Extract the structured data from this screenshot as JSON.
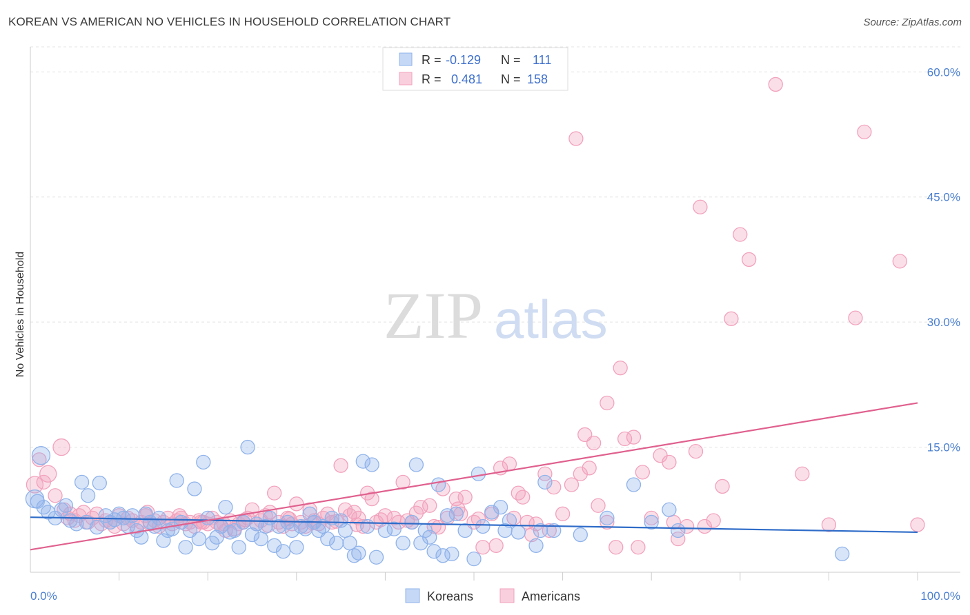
{
  "title": "KOREAN VS AMERICAN NO VEHICLES IN HOUSEHOLD CORRELATION CHART",
  "source": "Source: ZipAtlas.com",
  "watermark": {
    "zip": "ZIP",
    "atlas": "atlas"
  },
  "legend_top": [
    {
      "r_label": "R =",
      "r_value": "-0.129",
      "n_label": "N =",
      "n_value": "111",
      "color": "#8fb3ea"
    },
    {
      "r_label": "R =",
      "r_value": "0.481",
      "n_label": "N =",
      "n_value": "158",
      "color": "#f2a2bd"
    }
  ],
  "chart_data": {
    "type": "scatter",
    "title": "KOREAN VS AMERICAN NO VEHICLES IN HOUSEHOLD CORRELATION CHART",
    "ylabel": "No Vehicles in Household",
    "xlabel": "",
    "xlim": [
      0,
      100
    ],
    "ylim": [
      0,
      63
    ],
    "x_tick_labels": [
      "0.0%",
      "100.0%"
    ],
    "y_ticks": [
      15,
      30,
      45,
      60
    ],
    "y_tick_labels": [
      "15.0%",
      "30.0%",
      "45.0%",
      "60.0%"
    ],
    "grid": true,
    "legend_position": "bottom",
    "series": [
      {
        "name": "Koreans",
        "color": "#8fb3ea",
        "line_color": "#2e6cc8",
        "trend": [
          [
            0,
            6.6
          ],
          [
            100,
            4.8
          ]
        ],
        "points": [
          [
            0.5,
            8.8
          ],
          [
            1.2,
            14.0
          ],
          [
            1.5,
            7.8
          ],
          [
            2.0,
            7.2
          ],
          [
            2.8,
            6.5
          ],
          [
            3.5,
            7.5
          ],
          [
            4.0,
            8.0
          ],
          [
            4.5,
            6.2
          ],
          [
            5.2,
            5.8
          ],
          [
            5.8,
            10.8
          ],
          [
            6.3,
            6.0
          ],
          [
            6.5,
            9.2
          ],
          [
            7.5,
            5.4
          ],
          [
            7.8,
            10.7
          ],
          [
            8.5,
            6.8
          ],
          [
            9.0,
            6.0
          ],
          [
            9.5,
            6.3
          ],
          [
            10.0,
            7.0
          ],
          [
            10.5,
            6.5
          ],
          [
            11.0,
            5.5
          ],
          [
            11.5,
            6.8
          ],
          [
            12.0,
            5.0
          ],
          [
            12.5,
            4.2
          ],
          [
            13.0,
            7.0
          ],
          [
            13.5,
            6.0
          ],
          [
            14.0,
            5.5
          ],
          [
            14.5,
            6.5
          ],
          [
            15.0,
            3.8
          ],
          [
            15.5,
            5.0
          ],
          [
            16.0,
            5.2
          ],
          [
            16.5,
            11.0
          ],
          [
            17.0,
            6.0
          ],
          [
            17.5,
            3.0
          ],
          [
            18.0,
            5.0
          ],
          [
            18.5,
            10.0
          ],
          [
            19.0,
            4.0
          ],
          [
            19.5,
            13.2
          ],
          [
            20.0,
            6.5
          ],
          [
            20.5,
            3.5
          ],
          [
            21.0,
            4.2
          ],
          [
            21.5,
            5.5
          ],
          [
            22.0,
            7.8
          ],
          [
            22.5,
            4.8
          ],
          [
            23.0,
            5.0
          ],
          [
            23.5,
            3.0
          ],
          [
            24.0,
            6.0
          ],
          [
            24.5,
            15.0
          ],
          [
            25.0,
            4.5
          ],
          [
            25.5,
            5.8
          ],
          [
            26.0,
            4.0
          ],
          [
            26.5,
            5.5
          ],
          [
            27.0,
            6.5
          ],
          [
            27.5,
            3.2
          ],
          [
            28.0,
            5.5
          ],
          [
            28.5,
            2.5
          ],
          [
            29.0,
            6.0
          ],
          [
            29.5,
            5.0
          ],
          [
            30.0,
            3.0
          ],
          [
            30.5,
            5.5
          ],
          [
            31.0,
            5.2
          ],
          [
            31.5,
            7.0
          ],
          [
            32.0,
            6.0
          ],
          [
            32.5,
            5.0
          ],
          [
            33.0,
            5.5
          ],
          [
            33.5,
            4.0
          ],
          [
            34.0,
            6.5
          ],
          [
            34.5,
            3.5
          ],
          [
            35.0,
            6.2
          ],
          [
            35.5,
            5.0
          ],
          [
            36.0,
            3.5
          ],
          [
            36.5,
            2.0
          ],
          [
            37.0,
            2.3
          ],
          [
            37.5,
            13.3
          ],
          [
            38.0,
            5.5
          ],
          [
            38.5,
            12.9
          ],
          [
            39.0,
            1.8
          ],
          [
            40.0,
            5.0
          ],
          [
            41.0,
            5.2
          ],
          [
            42.0,
            3.5
          ],
          [
            43.0,
            6.0
          ],
          [
            43.5,
            12.9
          ],
          [
            44.0,
            3.5
          ],
          [
            44.5,
            5.0
          ],
          [
            45.0,
            4.2
          ],
          [
            45.5,
            2.5
          ],
          [
            46.0,
            10.5
          ],
          [
            46.5,
            2.0
          ],
          [
            47.0,
            6.8
          ],
          [
            47.5,
            2.2
          ],
          [
            48.0,
            7.0
          ],
          [
            49.0,
            5.0
          ],
          [
            50.0,
            1.6
          ],
          [
            50.5,
            11.8
          ],
          [
            51.0,
            5.5
          ],
          [
            52.0,
            7.2
          ],
          [
            53.0,
            7.8
          ],
          [
            53.5,
            5.0
          ],
          [
            54.0,
            6.2
          ],
          [
            55.0,
            4.8
          ],
          [
            57.0,
            3.2
          ],
          [
            57.5,
            5.0
          ],
          [
            58.0,
            10.8
          ],
          [
            59.0,
            5.0
          ],
          [
            62.0,
            4.5
          ],
          [
            65.0,
            6.5
          ],
          [
            68.0,
            10.5
          ],
          [
            70.0,
            6.0
          ],
          [
            72.0,
            7.5
          ],
          [
            73.0,
            5.0
          ],
          [
            91.5,
            2.2
          ],
          [
            0.8,
            8.5
          ]
        ]
      },
      {
        "name": "Americans",
        "color": "#f2a2bd",
        "line_color": "#e0608e",
        "trend": [
          [
            0,
            2.7
          ],
          [
            100,
            20.3
          ]
        ],
        "points": [
          [
            0.5,
            10.5
          ],
          [
            1.0,
            13.5
          ],
          [
            1.5,
            10.8
          ],
          [
            2.0,
            11.8
          ],
          [
            2.8,
            9.2
          ],
          [
            3.5,
            15.0
          ],
          [
            3.8,
            7.5
          ],
          [
            4.2,
            6.5
          ],
          [
            4.5,
            7.0
          ],
          [
            5.0,
            6.2
          ],
          [
            5.5,
            6.8
          ],
          [
            6.0,
            7.2
          ],
          [
            6.5,
            6.0
          ],
          [
            7.0,
            6.5
          ],
          [
            7.5,
            7.0
          ],
          [
            8.0,
            5.8
          ],
          [
            8.5,
            6.2
          ],
          [
            9.0,
            6.0
          ],
          [
            9.5,
            5.5
          ],
          [
            10.0,
            6.8
          ],
          [
            10.5,
            5.8
          ],
          [
            11.0,
            6.5
          ],
          [
            11.5,
            6.2
          ],
          [
            12.0,
            5.5
          ],
          [
            12.5,
            6.0
          ],
          [
            13.0,
            6.8
          ],
          [
            13.5,
            5.8
          ],
          [
            14.0,
            6.2
          ],
          [
            14.5,
            5.5
          ],
          [
            15.0,
            6.0
          ],
          [
            15.5,
            6.5
          ],
          [
            16.0,
            5.8
          ],
          [
            16.5,
            6.2
          ],
          [
            17.0,
            6.5
          ],
          [
            17.5,
            5.8
          ],
          [
            18.0,
            6.0
          ],
          [
            18.5,
            5.5
          ],
          [
            19.0,
            6.2
          ],
          [
            19.5,
            6.0
          ],
          [
            20.0,
            5.8
          ],
          [
            20.5,
            6.5
          ],
          [
            21.0,
            6.0
          ],
          [
            21.5,
            5.5
          ],
          [
            22.0,
            5.0
          ],
          [
            22.5,
            6.2
          ],
          [
            23.0,
            5.2
          ],
          [
            23.5,
            5.8
          ],
          [
            24.0,
            6.0
          ],
          [
            24.5,
            6.5
          ],
          [
            25.0,
            7.5
          ],
          [
            25.5,
            5.8
          ],
          [
            26.0,
            6.2
          ],
          [
            26.5,
            6.8
          ],
          [
            27.0,
            7.2
          ],
          [
            27.5,
            9.5
          ],
          [
            28.0,
            6.0
          ],
          [
            28.5,
            5.5
          ],
          [
            29.0,
            6.5
          ],
          [
            29.5,
            5.8
          ],
          [
            30.0,
            8.2
          ],
          [
            30.5,
            6.0
          ],
          [
            31.0,
            5.5
          ],
          [
            31.5,
            7.5
          ],
          [
            32.0,
            6.2
          ],
          [
            32.5,
            5.8
          ],
          [
            33.0,
            6.5
          ],
          [
            33.5,
            7.0
          ],
          [
            34.0,
            6.0
          ],
          [
            35.0,
            12.8
          ],
          [
            35.5,
            7.5
          ],
          [
            36.0,
            6.8
          ],
          [
            36.5,
            7.2
          ],
          [
            37.0,
            6.5
          ],
          [
            37.5,
            5.5
          ],
          [
            38.0,
            9.5
          ],
          [
            38.5,
            8.8
          ],
          [
            39.0,
            6.0
          ],
          [
            40.0,
            6.8
          ],
          [
            41.0,
            6.5
          ],
          [
            42.0,
            10.8
          ],
          [
            42.5,
            6.2
          ],
          [
            43.0,
            6.0
          ],
          [
            44.0,
            7.8
          ],
          [
            45.0,
            8.0
          ],
          [
            45.5,
            5.5
          ],
          [
            46.5,
            10.0
          ],
          [
            47.0,
            6.5
          ],
          [
            48.0,
            8.8
          ],
          [
            48.5,
            7.0
          ],
          [
            49.0,
            9.0
          ],
          [
            50.0,
            6.0
          ],
          [
            51.0,
            3.0
          ],
          [
            52.0,
            7.0
          ],
          [
            53.0,
            12.5
          ],
          [
            54.0,
            13.0
          ],
          [
            55.0,
            9.5
          ],
          [
            55.5,
            9.0
          ],
          [
            56.0,
            6.0
          ],
          [
            58.0,
            11.8
          ],
          [
            59.0,
            10.2
          ],
          [
            60.0,
            7.0
          ],
          [
            61.0,
            10.5
          ],
          [
            62.0,
            11.8
          ],
          [
            63.0,
            12.5
          ],
          [
            64.0,
            8.0
          ],
          [
            65.0,
            6.0
          ],
          [
            66.0,
            3.0
          ],
          [
            67.0,
            16.0
          ],
          [
            68.0,
            16.2
          ],
          [
            69.0,
            12.0
          ],
          [
            70.0,
            6.5
          ],
          [
            71.0,
            14.0
          ],
          [
            72.0,
            13.2
          ],
          [
            73.0,
            4.0
          ],
          [
            74.0,
            5.5
          ],
          [
            75.0,
            14.5
          ],
          [
            76.0,
            5.5
          ],
          [
            78.0,
            10.3
          ],
          [
            79.0,
            30.4
          ],
          [
            80.0,
            40.5
          ],
          [
            81.0,
            37.5
          ],
          [
            84.0,
            58.5
          ],
          [
            87.0,
            11.8
          ],
          [
            90.0,
            5.7
          ],
          [
            93.0,
            30.5
          ],
          [
            94.0,
            52.8
          ],
          [
            98.0,
            37.3
          ],
          [
            100.0,
            5.7
          ],
          [
            61.5,
            52.0
          ],
          [
            75.5,
            43.8
          ],
          [
            66.5,
            24.5
          ],
          [
            65.0,
            20.3
          ],
          [
            62.5,
            16.5
          ],
          [
            63.5,
            15.5
          ],
          [
            52.5,
            3.2
          ],
          [
            57.0,
            5.8
          ],
          [
            54.5,
            6.5
          ],
          [
            68.5,
            3.0
          ],
          [
            72.5,
            6.0
          ],
          [
            77.0,
            6.2
          ],
          [
            13.2,
            7.2
          ],
          [
            16.8,
            6.8
          ],
          [
            19.2,
            6.0
          ],
          [
            21.8,
            5.8
          ],
          [
            24.2,
            6.3
          ],
          [
            26.8,
            5.6
          ],
          [
            29.2,
            6.4
          ],
          [
            31.8,
            5.9
          ],
          [
            34.5,
            6.1
          ],
          [
            36.8,
            5.7
          ],
          [
            39.5,
            6.3
          ],
          [
            41.5,
            6.0
          ],
          [
            43.5,
            7.1
          ],
          [
            46.0,
            5.4
          ],
          [
            48.2,
            7.6
          ],
          [
            50.5,
            6.4
          ],
          [
            56.5,
            4.5
          ],
          [
            58.5,
            5.0
          ]
        ]
      }
    ]
  }
}
